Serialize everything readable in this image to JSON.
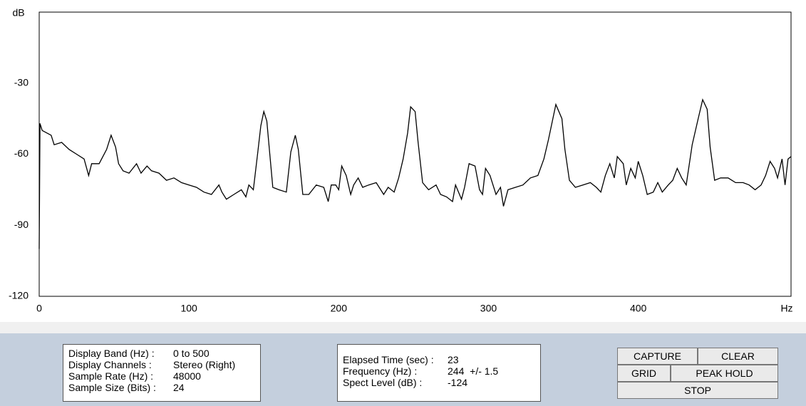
{
  "chart_data": {
    "type": "line",
    "y_label": "dB",
    "x_label": "Hz",
    "color": "#000000",
    "xlim": [
      0,
      502
    ],
    "ylim": [
      -120,
      0
    ],
    "xticks": [
      0,
      100,
      200,
      300,
      400
    ],
    "yticks": [
      -120,
      -90,
      -60,
      -30
    ],
    "x": [
      0,
      0.5,
      2,
      5,
      8,
      10,
      15,
      20,
      25,
      30,
      33,
      35,
      40,
      45,
      48,
      51,
      53,
      56,
      60,
      65,
      68,
      72,
      75,
      80,
      85,
      90,
      95,
      100,
      105,
      110,
      115,
      120,
      122,
      125,
      130,
      135,
      138,
      140,
      143,
      146,
      148,
      150,
      152,
      154,
      156,
      160,
      165,
      168,
      171,
      173,
      176,
      180,
      185,
      190,
      193,
      195,
      198,
      200,
      202,
      205,
      208,
      210,
      213,
      216,
      220,
      225,
      230,
      233,
      237,
      240,
      243,
      246,
      248,
      251,
      253,
      256,
      260,
      265,
      268,
      272,
      276,
      278,
      282,
      284,
      287,
      291,
      294,
      296,
      298,
      301,
      305,
      308,
      310,
      313,
      318,
      323,
      328,
      333,
      337,
      340,
      343,
      345,
      349,
      351,
      354,
      358,
      363,
      368,
      372,
      375,
      378,
      381,
      384,
      386,
      390,
      392,
      395,
      398,
      400,
      403,
      406,
      410,
      413,
      416,
      420,
      423,
      426,
      429,
      432,
      436,
      440,
      443,
      446,
      448,
      451,
      455,
      460,
      465,
      470,
      474,
      478,
      482,
      485,
      488,
      491,
      493,
      496,
      498,
      500,
      502
    ],
    "values": [
      -100,
      -47,
      -50,
      -51,
      -52,
      -56,
      -55,
      -58,
      -60,
      -62,
      -69,
      -64,
      -64,
      -58,
      -52,
      -57,
      -64,
      -67,
      -68,
      -64,
      -68,
      -65,
      -67,
      -68,
      -71,
      -70,
      -72,
      -73,
      -74,
      -76,
      -77,
      -73,
      -76,
      -79,
      -77,
      -75,
      -78,
      -73,
      -75,
      -59,
      -48,
      -42,
      -46,
      -60,
      -74,
      -75,
      -76,
      -59,
      -52,
      -58,
      -77,
      -77,
      -73,
      -74,
      -80,
      -73,
      -73,
      -75,
      -65,
      -69,
      -77,
      -73,
      -70,
      -74,
      -73,
      -72,
      -77,
      -74,
      -76,
      -70,
      -62,
      -51,
      -40,
      -42,
      -55,
      -72,
      -75,
      -73,
      -77,
      -78,
      -80,
      -73,
      -79,
      -74,
      -64,
      -65,
      -75,
      -77,
      -66,
      -69,
      -77,
      -74,
      -82,
      -75,
      -74,
      -73,
      -70,
      -69,
      -62,
      -54,
      -45,
      -39,
      -45,
      -58,
      -71,
      -74,
      -73,
      -72,
      -74,
      -76,
      -69,
      -64,
      -70,
      -61,
      -64,
      -73,
      -66,
      -70,
      -63,
      -69,
      -77,
      -76,
      -72,
      -76,
      -73,
      -71,
      -66,
      -70,
      -73,
      -56,
      -45,
      -37,
      -41,
      -57,
      -71,
      -70,
      -70,
      -72,
      -72,
      -73,
      -75,
      -73,
      -69,
      -63,
      -66,
      -70,
      -62,
      -73,
      -62,
      -61
    ]
  },
  "info_left": {
    "rows": [
      [
        "Display Band (Hz) :",
        "0 to 500"
      ],
      [
        "Display Channels :",
        "Stereo (Right)"
      ],
      [
        "Sample Rate (Hz) :",
        "48000"
      ],
      [
        "Sample Size (Bits) :",
        "24"
      ]
    ]
  },
  "info_right": {
    "rows": [
      [
        "Elapsed Time (sec) :",
        "23"
      ],
      [
        "Frequency (Hz) :",
        "244  +/- 1.5"
      ],
      [
        "Spect Level (dB) :",
        "-124"
      ]
    ]
  },
  "buttons": [
    "CAPTURE",
    "CLEAR",
    "GRID",
    "PEAK HOLD",
    "STOP"
  ]
}
